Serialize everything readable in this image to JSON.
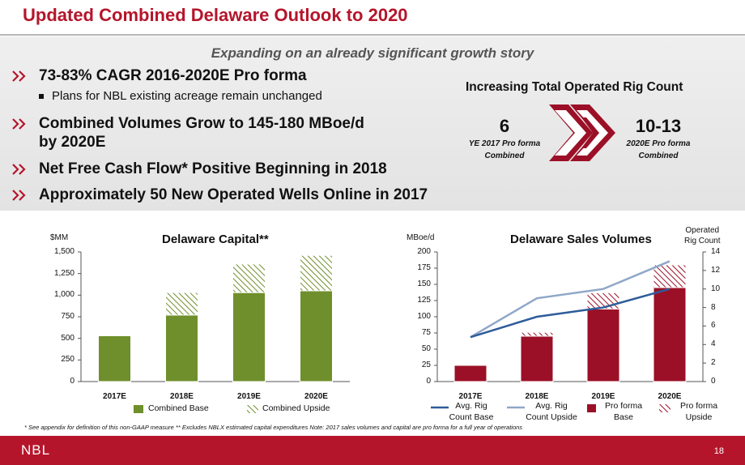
{
  "slide": {
    "title": "Updated Combined Delaware Outlook to 2020",
    "subtitle": "Expanding on an already significant growth story",
    "bullets": [
      {
        "text": "73-83% CAGR 2016-2020E Pro forma"
      },
      {
        "text": "Combined Volumes Grow to 145-180 MBoe/d"
      },
      {
        "text": "by 2020E"
      },
      {
        "text": "Net Free Cash Flow* Positive Beginning in 2018"
      },
      {
        "text": "Approximately 50 New Operated Wells Online in 2017"
      }
    ],
    "sub_bullet": "Plans for NBL existing acreage remain unchanged",
    "rig_count": {
      "heading": "Increasing Total Operated Rig Count",
      "left_value": "6",
      "left_caption_1": "YE 2017 Pro forma",
      "left_caption_2": "Combined",
      "right_value": "10-13",
      "right_caption_1": "2020E Pro forma",
      "right_caption_2": "Combined"
    },
    "footnote": "* See appendix for definition of this non-GAAP measure    ** Excludes NBLX estimated capital expenditures    Note: 2017 sales volumes and capital are pro forma for a full year of operations",
    "footer": {
      "logo": "NBL",
      "page": "18"
    },
    "colors": {
      "brand_red": "#b5152b",
      "green": "#6f8f2c",
      "dark_red": "#9b1027",
      "line_dark": "#2e5c9a",
      "line_light": "#8fa7c8"
    }
  },
  "chart_data": [
    {
      "type": "bar",
      "title": "Delaware Capital**",
      "ylabel": "$MM",
      "categories": [
        "2017E",
        "2018E",
        "2019E",
        "2020E"
      ],
      "ylim": [
        0,
        1500
      ],
      "yticks": [
        "0",
        "250",
        "500",
        "750",
        "1,000",
        "1,250",
        "1,500"
      ],
      "series": [
        {
          "name": "Combined Base",
          "values": [
            530,
            770,
            1030,
            1050
          ]
        },
        {
          "name": "Combined Upside",
          "values": [
            0,
            260,
            330,
            410
          ]
        }
      ]
    },
    {
      "type": "bar",
      "title": "Delaware Sales Volumes",
      "ylabel": "MBoe/d",
      "y2label_1": "Operated",
      "y2label_2": "Rig Count",
      "categories": [
        "2017E",
        "2018E",
        "2019E",
        "2020E"
      ],
      "ylim": [
        0,
        200
      ],
      "yticks": [
        "0",
        "25",
        "50",
        "75",
        "100",
        "125",
        "150",
        "175",
        "200"
      ],
      "y2lim": [
        0,
        14
      ],
      "y2ticks": [
        "0",
        "2",
        "4",
        "6",
        "8",
        "10",
        "12",
        "14"
      ],
      "series": [
        {
          "name": "Pro forma Base",
          "values": [
            25,
            70,
            112,
            145
          ]
        },
        {
          "name": "Pro forma Upside",
          "values": [
            0,
            6,
            25,
            35
          ]
        }
      ],
      "lines": [
        {
          "name": "Avg. Rig Count Base",
          "x": [
            "2017E",
            "2018E",
            "2019E",
            "2020E"
          ],
          "values": [
            4.8,
            7.0,
            8.0,
            10.0
          ]
        },
        {
          "name": "Avg. Rig Count Upside",
          "x": [
            "2017E",
            "2018E",
            "2019E",
            "2020E"
          ],
          "values": [
            4.8,
            9.0,
            10.0,
            13.0
          ]
        }
      ],
      "legend": {
        "avg_base_1": "Avg. Rig",
        "avg_base_2": "Count Base",
        "avg_upside_1": "Avg. Rig",
        "avg_upside_2": "Count Upside",
        "pf_base_1": "Pro forma",
        "pf_base_2": "Base",
        "pf_upside_1": "Pro forma",
        "pf_upside_2": "Upside"
      }
    }
  ]
}
